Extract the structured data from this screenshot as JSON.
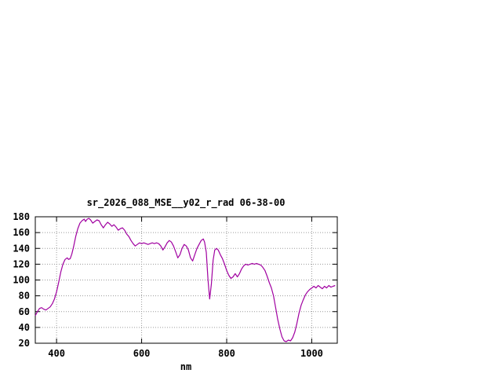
{
  "page": {
    "background": "#ffffff"
  },
  "chart_data": {
    "type": "line",
    "title": "sr_2026_088_MSE__y02_r_rad 06-38-00",
    "xlabel": "nm",
    "ylabel": "",
    "xlim": [
      350,
      1060
    ],
    "ylim": [
      20,
      180
    ],
    "x_ticks": [
      400,
      600,
      800,
      1000
    ],
    "y_ticks": [
      20,
      40,
      60,
      80,
      100,
      120,
      140,
      160,
      180
    ],
    "grid": true,
    "legend": "none",
    "line_color": "#a000a0",
    "series": [
      {
        "points": [
          [
            350,
            55
          ],
          [
            355,
            60
          ],
          [
            360,
            64
          ],
          [
            365,
            65
          ],
          [
            370,
            63
          ],
          [
            375,
            62
          ],
          [
            380,
            64
          ],
          [
            385,
            66
          ],
          [
            390,
            70
          ],
          [
            395,
            76
          ],
          [
            400,
            85
          ],
          [
            405,
            97
          ],
          [
            410,
            110
          ],
          [
            415,
            120
          ],
          [
            420,
            126
          ],
          [
            425,
            128
          ],
          [
            428,
            126
          ],
          [
            432,
            127
          ],
          [
            436,
            133
          ],
          [
            440,
            142
          ],
          [
            445,
            155
          ],
          [
            450,
            165
          ],
          [
            455,
            172
          ],
          [
            460,
            175
          ],
          [
            465,
            177
          ],
          [
            468,
            174
          ],
          [
            472,
            177
          ],
          [
            476,
            178
          ],
          [
            480,
            176
          ],
          [
            485,
            172
          ],
          [
            490,
            174
          ],
          [
            495,
            176
          ],
          [
            500,
            175
          ],
          [
            505,
            170
          ],
          [
            510,
            166
          ],
          [
            515,
            170
          ],
          [
            520,
            173
          ],
          [
            525,
            171
          ],
          [
            530,
            168
          ],
          [
            535,
            170
          ],
          [
            540,
            167
          ],
          [
            545,
            163
          ],
          [
            550,
            165
          ],
          [
            555,
            166
          ],
          [
            560,
            163
          ],
          [
            565,
            158
          ],
          [
            570,
            155
          ],
          [
            575,
            150
          ],
          [
            580,
            146
          ],
          [
            585,
            143
          ],
          [
            590,
            145
          ],
          [
            595,
            147
          ],
          [
            600,
            146
          ],
          [
            605,
            147
          ],
          [
            610,
            146
          ],
          [
            615,
            145
          ],
          [
            620,
            146
          ],
          [
            625,
            147
          ],
          [
            630,
            146
          ],
          [
            635,
            147
          ],
          [
            640,
            146
          ],
          [
            645,
            143
          ],
          [
            650,
            138
          ],
          [
            655,
            142
          ],
          [
            660,
            147
          ],
          [
            665,
            150
          ],
          [
            670,
            148
          ],
          [
            675,
            143
          ],
          [
            680,
            136
          ],
          [
            685,
            128
          ],
          [
            690,
            132
          ],
          [
            695,
            140
          ],
          [
            700,
            145
          ],
          [
            705,
            143
          ],
          [
            710,
            138
          ],
          [
            715,
            128
          ],
          [
            720,
            124
          ],
          [
            725,
            132
          ],
          [
            730,
            140
          ],
          [
            735,
            145
          ],
          [
            740,
            150
          ],
          [
            745,
            152
          ],
          [
            748,
            148
          ],
          [
            752,
            135
          ],
          [
            756,
            100
          ],
          [
            760,
            76
          ],
          [
            764,
            95
          ],
          [
            768,
            125
          ],
          [
            772,
            138
          ],
          [
            776,
            140
          ],
          [
            780,
            138
          ],
          [
            785,
            132
          ],
          [
            790,
            127
          ],
          [
            795,
            120
          ],
          [
            800,
            112
          ],
          [
            805,
            106
          ],
          [
            810,
            102
          ],
          [
            815,
            104
          ],
          [
            820,
            108
          ],
          [
            825,
            104
          ],
          [
            830,
            108
          ],
          [
            835,
            114
          ],
          [
            840,
            118
          ],
          [
            845,
            120
          ],
          [
            850,
            119
          ],
          [
            855,
            120
          ],
          [
            860,
            121
          ],
          [
            865,
            120
          ],
          [
            870,
            121
          ],
          [
            875,
            120
          ],
          [
            880,
            119
          ],
          [
            885,
            116
          ],
          [
            890,
            112
          ],
          [
            895,
            105
          ],
          [
            900,
            97
          ],
          [
            905,
            90
          ],
          [
            910,
            80
          ],
          [
            915,
            65
          ],
          [
            920,
            50
          ],
          [
            925,
            38
          ],
          [
            930,
            28
          ],
          [
            935,
            23
          ],
          [
            940,
            22
          ],
          [
            945,
            24
          ],
          [
            950,
            23
          ],
          [
            955,
            27
          ],
          [
            960,
            34
          ],
          [
            965,
            45
          ],
          [
            970,
            58
          ],
          [
            975,
            68
          ],
          [
            980,
            75
          ],
          [
            985,
            81
          ],
          [
            990,
            85
          ],
          [
            995,
            88
          ],
          [
            1000,
            90
          ],
          [
            1005,
            92
          ],
          [
            1010,
            90
          ],
          [
            1015,
            93
          ],
          [
            1020,
            91
          ],
          [
            1025,
            89
          ],
          [
            1030,
            92
          ],
          [
            1035,
            90
          ],
          [
            1040,
            93
          ],
          [
            1045,
            91
          ],
          [
            1050,
            92
          ],
          [
            1055,
            93
          ]
        ]
      }
    ]
  }
}
